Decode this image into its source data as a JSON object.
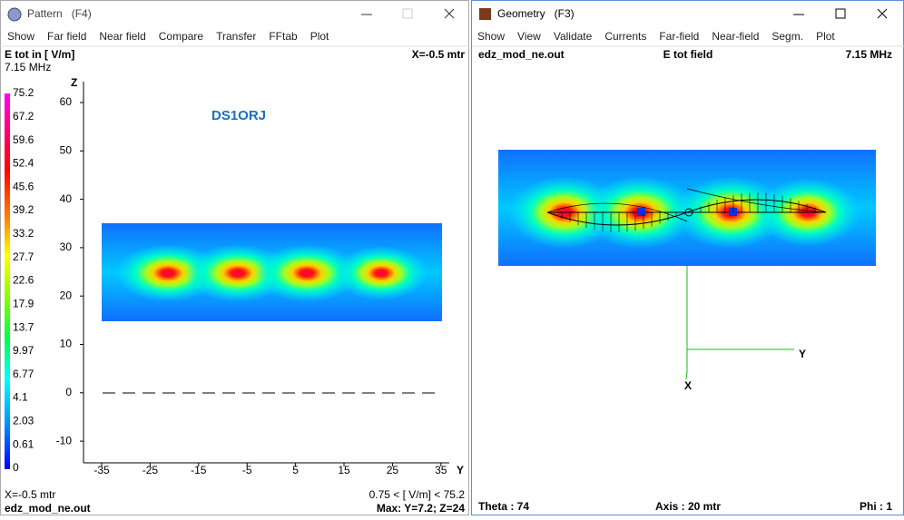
{
  "pattern_window": {
    "title": "Pattern   (F4)",
    "menu": [
      "Show",
      "Far field",
      "Near field",
      "Compare",
      "Transfer",
      "FFtab",
      "Plot"
    ],
    "header": {
      "quantity": "E tot in [ V/m]",
      "frequency": "7.15 MHz",
      "position": "X=-0.5 mtr"
    },
    "legend": [
      "75.2",
      "67.2",
      "59.6",
      "52.4",
      "45.6",
      "39.2",
      "33.2",
      "27.7",
      "22.6",
      "17.9",
      "13.7",
      "9.97",
      "6.77",
      "4.1",
      "2.03",
      "0.61",
      "0"
    ],
    "plot": {
      "label": "DS1ORJ",
      "z_axis": {
        "label": "Z",
        "ticks": [
          "60",
          "50",
          "40",
          "30",
          "20",
          "10",
          "0",
          "-10"
        ]
      },
      "y_axis": {
        "label": "Y",
        "ticks": [
          "-35",
          "-25",
          "-15",
          "-5",
          "5",
          "15",
          "25",
          "35"
        ]
      }
    },
    "footer": {
      "position": "X=-0.5 mtr",
      "range": "0.75 < [ V/m] < 75.2",
      "file": "edz_mod_ne.out",
      "max": "Max: Y=7.2; Z=24"
    }
  },
  "geometry_window": {
    "title": "Geometry   (F3)",
    "menu": [
      "Show",
      "View",
      "Validate",
      "Currents",
      "Far-field",
      "Near-field",
      "Segm.",
      "Plot"
    ],
    "header": {
      "file": "edz_mod_ne.out",
      "field": "E tot field",
      "frequency": "7.15 MHz"
    },
    "axes": {
      "x": "X",
      "y": "Y"
    },
    "footer": {
      "theta": "Theta : 74",
      "axis": "Axis : 20 mtr",
      "phi": "Phi : 1"
    }
  }
}
